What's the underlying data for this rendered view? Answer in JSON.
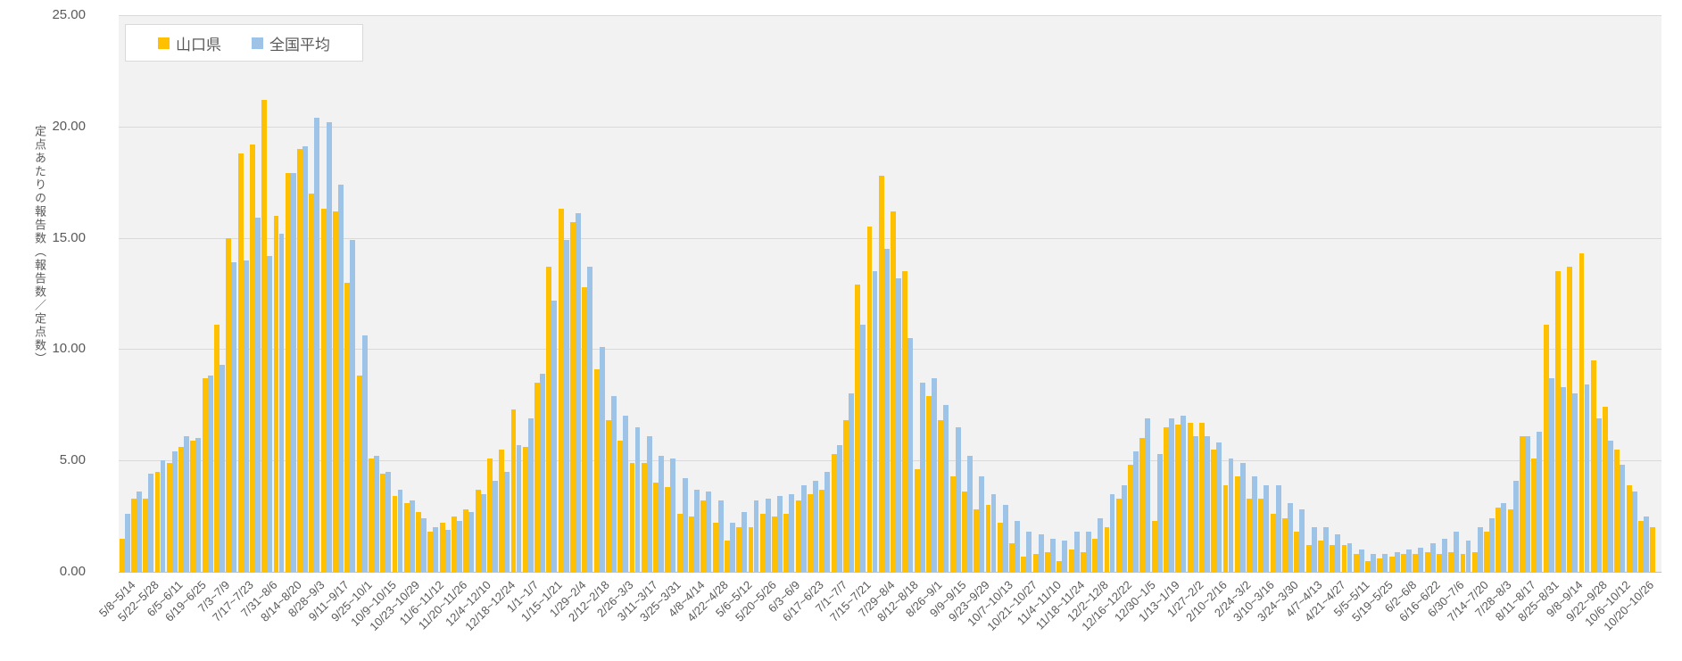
{
  "chart": {
    "y_axis_title": "定点あたりの報告数（報告数／定点数）",
    "legend": [
      {
        "label": "山口県",
        "color": "#FFC000"
      },
      {
        "label": "全国平均",
        "color": "#9DC3E6"
      }
    ],
    "colors": {
      "plot_background": "#F2F2F2",
      "gridline": "#D9D9D9",
      "axis_line": "#BFBFBF",
      "text": "#595959"
    }
  },
  "chart_data": {
    "type": "bar",
    "title": "",
    "xlabel": "",
    "ylabel": "定点あたりの報告数（報告数／定点数）",
    "ylim": [
      0,
      25
    ],
    "y_ticks": [
      "0.00",
      "5.00",
      "10.00",
      "15.00",
      "20.00",
      "25.00"
    ],
    "grid": true,
    "legend_position": "top-left",
    "x_label_interval": 2,
    "categories": [
      "5/8~5/14",
      "5/15~5/21",
      "5/22~5/28",
      "5/29~6/4",
      "6/5~6/11",
      "6/12~6/18",
      "6/19~6/25",
      "6/26~7/2",
      "7/3~7/9",
      "7/10~7/16",
      "7/17~7/23",
      "7/24~7/30",
      "7/31~8/6",
      "8/7~8/13",
      "8/14~8/20",
      "8/21~8/27",
      "8/28~9/3",
      "9/4~9/10",
      "9/11~9/17",
      "9/18~9/24",
      "9/25~10/1",
      "10/2~10/8",
      "10/9~10/15",
      "10/16~10/22",
      "10/23~10/29",
      "10/30~11/5",
      "11/6~11/12",
      "11/13~11/19",
      "11/20~11/26",
      "11/27~12/3",
      "12/4~12/10",
      "12/11~12/17",
      "12/18~12/24",
      "12/25~12/31",
      "1/1~1/7",
      "1/8~1/14",
      "1/15~1/21",
      "1/22~1/28",
      "1/29~2/4",
      "2/5~2/11",
      "2/12~2/18",
      "2/19~2/25",
      "2/26~3/3",
      "3/4~3/10",
      "3/11~3/17",
      "3/18~3/24",
      "3/25~3/31",
      "4/1~4/7",
      "4/8~4/14",
      "4/15~4/21",
      "4/22~4/28",
      "4/29~5/5",
      "5/6~5/12",
      "5/13~5/19",
      "5/20~5/26",
      "5/27~6/2",
      "6/3~6/9",
      "6/10~6/16",
      "6/17~6/23",
      "6/24~6/30",
      "7/1~7/7",
      "7/8~7/14",
      "7/15~7/21",
      "7/22~7/28",
      "7/29~8/4",
      "8/5~8/11",
      "8/12~8/18",
      "8/19~8/25",
      "8/26~9/1",
      "9/2~9/8",
      "9/9~9/15",
      "9/16~9/22",
      "9/23~9/29",
      "9/30~10/6",
      "10/7~10/13",
      "10/14~10/20",
      "10/21~10/27",
      "10/28~11/3",
      "11/4~11/10",
      "11/11~11/17",
      "11/18~11/24",
      "11/25~12/1",
      "12/2~12/8",
      "12/9~12/15",
      "12/16~12/22",
      "12/23~12/29",
      "12/30~1/5",
      "1/6~1/12",
      "1/13~1/19",
      "1/20~1/26",
      "1/27~2/2",
      "2/3~2/9",
      "2/10~2/16",
      "2/17~2/23",
      "2/24~3/2",
      "3/3~3/9",
      "3/10~3/16",
      "3/17~3/23",
      "3/24~3/30",
      "3/31~4/6",
      "4/7~4/13",
      "4/14~4/20",
      "4/21~4/27",
      "4/28~5/4",
      "5/5~5/11",
      "5/12~5/18",
      "5/19~5/25",
      "5/26~6/1",
      "6/2~6/8",
      "6/9~6/15",
      "6/16~6/22",
      "6/23~6/29",
      "6/30~7/6",
      "7/7~7/13",
      "7/14~7/20",
      "7/21~7/27",
      "7/28~8/3",
      "8/4~8/10",
      "8/11~8/17",
      "8/18~8/24",
      "8/25~8/31",
      "9/1~9/7",
      "9/8~9/14",
      "9/15~9/21",
      "9/22~9/28",
      "9/29~10/5",
      "10/6~10/12",
      "10/13~10/19",
      "10/20~10/26",
      "10/27~11/2"
    ],
    "series": [
      {
        "name": "山口県",
        "color": "#FFC000",
        "values": [
          1.5,
          3.3,
          3.3,
          4.5,
          4.9,
          5.6,
          5.9,
          8.7,
          11.1,
          15.0,
          18.8,
          19.2,
          21.2,
          16.0,
          17.9,
          19.0,
          17.0,
          16.3,
          16.2,
          13.0,
          8.8,
          5.1,
          4.4,
          3.4,
          3.1,
          2.7,
          1.8,
          2.2,
          2.5,
          2.8,
          3.7,
          5.1,
          5.5,
          7.3,
          5.6,
          8.5,
          13.7,
          16.3,
          15.7,
          12.8,
          9.1,
          6.8,
          5.9,
          4.9,
          4.9,
          4.0,
          3.8,
          2.6,
          2.5,
          3.2,
          2.2,
          1.4,
          2.0,
          2.0,
          2.6,
          2.5,
          2.6,
          3.2,
          3.5,
          3.7,
          5.3,
          6.8,
          12.9,
          15.5,
          17.8,
          16.2,
          13.5,
          4.6,
          7.9,
          6.8,
          4.3,
          3.6,
          2.8,
          3.0,
          2.2,
          1.3,
          0.7,
          0.8,
          0.9,
          0.5,
          1.0,
          0.9,
          1.5,
          2.0,
          3.3,
          4.8,
          6.0,
          2.3,
          6.5,
          6.6,
          6.7,
          6.7,
          5.5,
          3.9,
          4.3,
          3.3,
          3.3,
          2.6,
          2.4,
          1.8,
          1.2,
          1.4,
          1.2,
          1.2,
          0.8,
          0.5,
          0.6,
          0.7,
          0.8,
          0.8,
          0.9,
          0.8,
          0.9,
          0.8,
          0.9,
          1.8,
          2.9,
          2.8,
          6.1,
          5.1,
          11.1,
          13.5,
          13.7,
          14.3,
          9.5,
          7.4,
          5.5,
          3.9,
          2.3,
          2.0
        ]
      },
      {
        "name": "全国平均",
        "color": "#9DC3E6",
        "values": [
          2.6,
          3.6,
          4.4,
          5.0,
          5.4,
          6.1,
          6.0,
          8.8,
          9.3,
          13.9,
          14.0,
          15.9,
          14.2,
          15.2,
          17.9,
          19.1,
          20.4,
          20.2,
          17.4,
          14.9,
          10.6,
          5.2,
          4.5,
          3.7,
          3.2,
          2.4,
          2.0,
          1.9,
          2.3,
          2.7,
          3.5,
          4.1,
          4.5,
          5.7,
          6.9,
          8.9,
          12.2,
          14.9,
          16.1,
          13.7,
          10.1,
          7.9,
          7.0,
          6.5,
          6.1,
          5.2,
          5.1,
          4.2,
          3.7,
          3.6,
          3.2,
          2.2,
          2.7,
          3.2,
          3.3,
          3.4,
          3.5,
          3.9,
          4.1,
          4.5,
          5.7,
          8.0,
          11.1,
          13.5,
          14.5,
          13.2,
          10.5,
          8.5,
          8.7,
          7.5,
          6.5,
          5.2,
          4.3,
          3.5,
          3.0,
          2.3,
          1.8,
          1.7,
          1.5,
          1.4,
          1.8,
          1.8,
          2.4,
          3.5,
          3.9,
          5.4,
          6.9,
          5.3,
          6.9,
          7.0,
          6.1,
          6.1,
          5.8,
          5.1,
          4.9,
          4.3,
          3.9,
          3.9,
          3.1,
          2.8,
          2.0,
          2.0,
          1.7,
          1.3,
          1.0,
          0.8,
          0.8,
          0.9,
          1.0,
          1.1,
          1.3,
          1.5,
          1.8,
          1.4,
          2.0,
          2.4,
          3.1,
          4.1,
          6.1,
          6.3,
          8.7,
          8.3,
          8.0,
          8.4,
          6.9,
          5.9,
          4.8,
          3.6,
          2.5,
          null
        ]
      }
    ]
  }
}
